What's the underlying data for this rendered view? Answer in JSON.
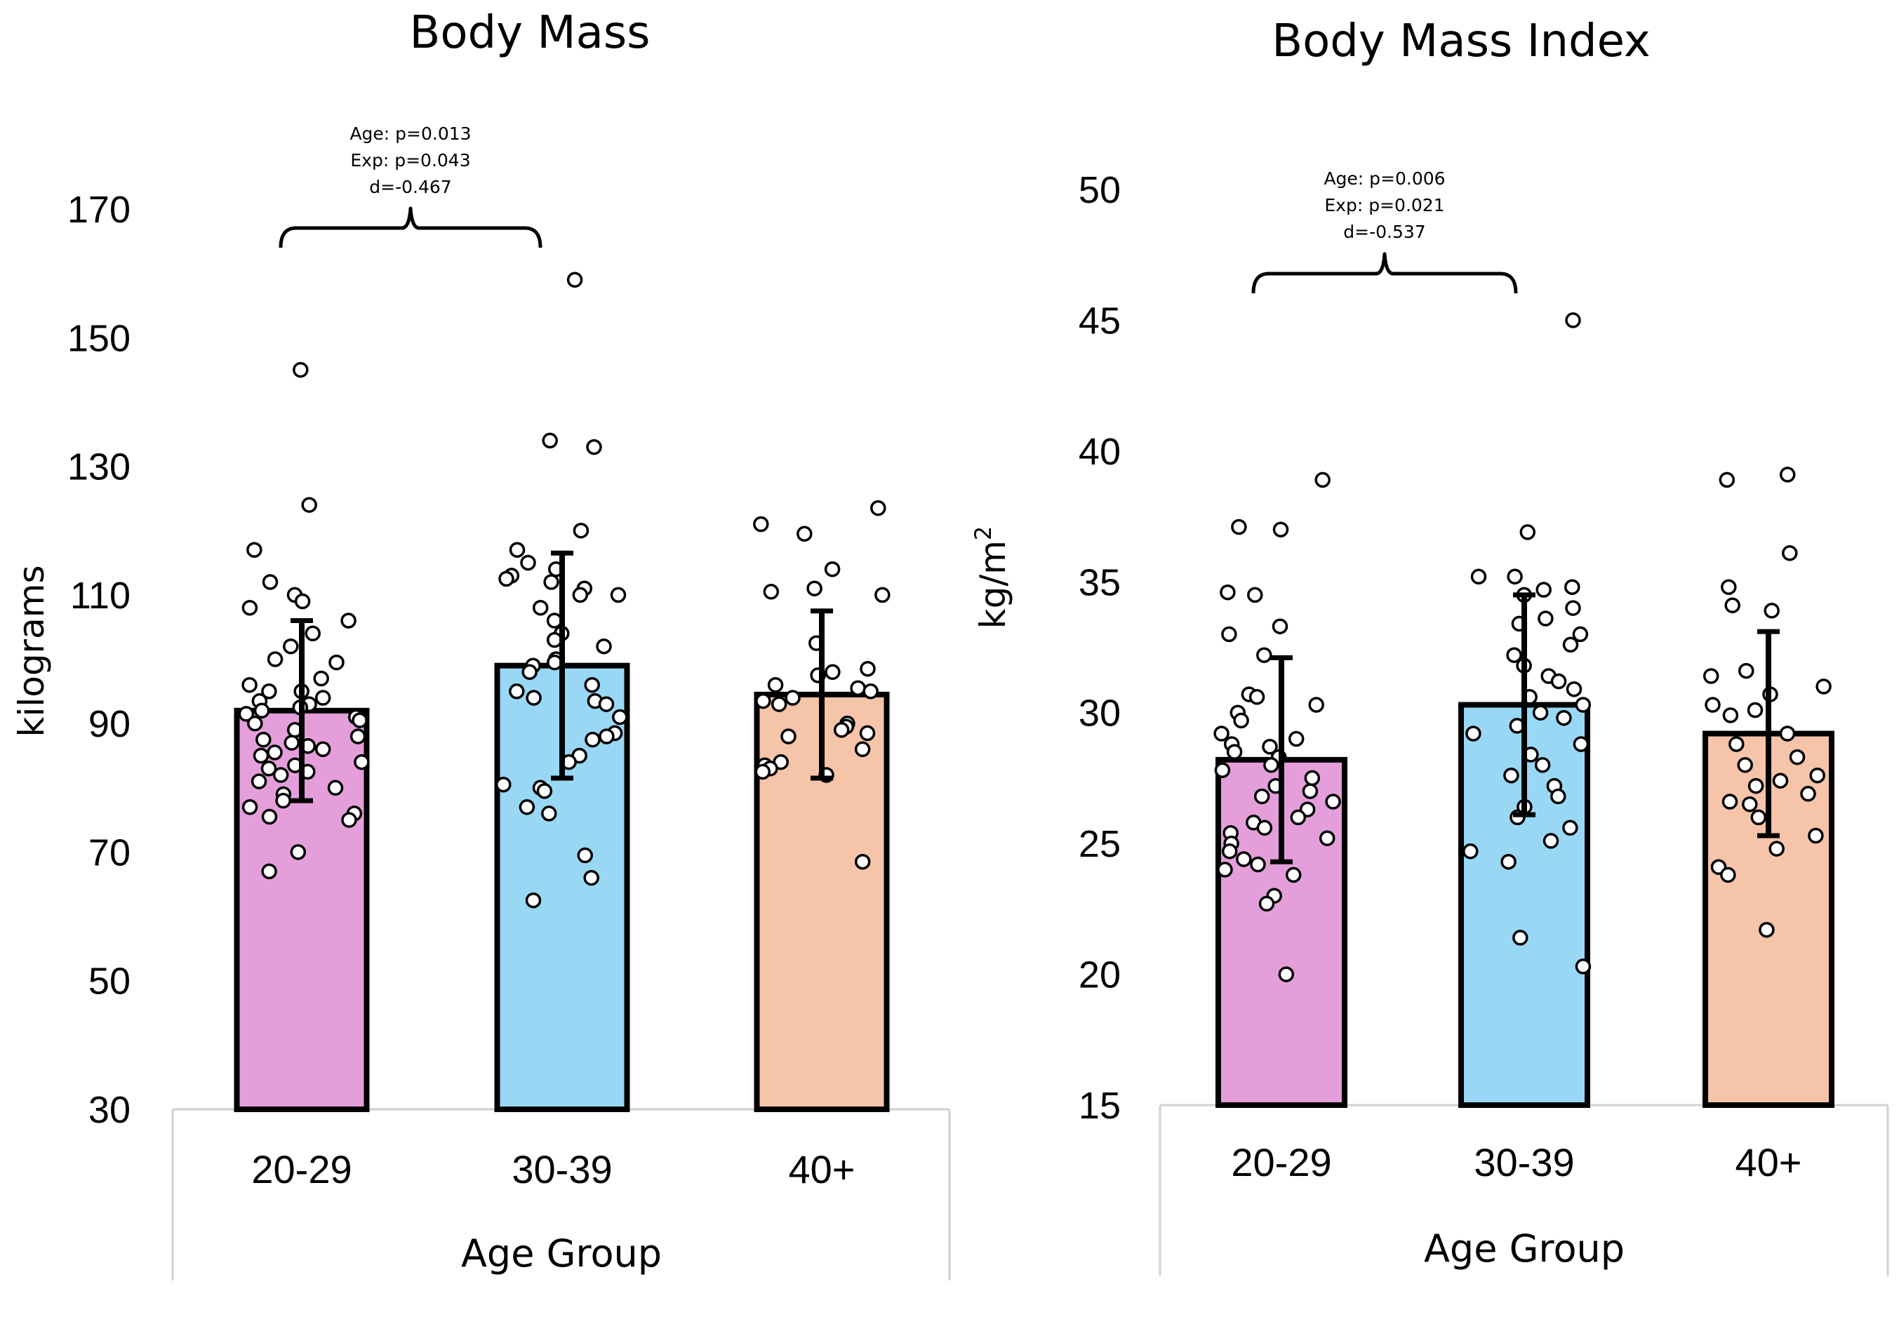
{
  "chart_data": [
    {
      "type": "bar",
      "title": "Body Mass",
      "xlabel": "Age Group",
      "ylabel": "kilograms",
      "ylabel_sup": "",
      "ylim": [
        30,
        170
      ],
      "yticks": [
        30,
        50,
        70,
        90,
        110,
        130,
        150,
        170
      ],
      "ytick_labels": [
        "30",
        "50",
        "70",
        "90",
        "110",
        "130",
        "150",
        "170"
      ],
      "categories": [
        "20-29",
        "30-39",
        "40+"
      ],
      "colors": [
        "#e49fdb",
        "#99d8f5",
        "#f5c4a9"
      ],
      "values": [
        92,
        99,
        94.5
      ],
      "error": [
        14,
        17.5,
        13
      ],
      "points": [
        [
          145,
          124,
          117,
          112,
          110,
          109,
          108,
          106,
          104,
          102,
          100,
          99.5,
          97,
          96,
          95,
          95,
          94,
          93.5,
          93,
          92.5,
          92,
          91.5,
          91,
          90.5,
          90,
          89,
          88,
          87.5,
          87,
          86.5,
          86,
          85.5,
          85,
          84,
          83.5,
          83,
          82.5,
          82,
          81,
          80,
          79,
          78,
          77,
          76,
          75.5,
          75,
          70,
          67
        ],
        [
          159,
          134,
          133,
          120,
          117,
          115,
          114,
          113,
          112.5,
          112,
          111,
          110,
          110,
          108,
          106,
          104,
          103,
          102,
          100,
          99.5,
          99,
          98,
          96,
          95,
          94,
          93.5,
          93,
          91,
          88.5,
          88,
          87.5,
          85,
          84,
          80.5,
          80,
          79.5,
          77,
          76,
          69.5,
          66,
          62.5
        ],
        [
          123.5,
          121,
          119.5,
          114,
          111,
          110.5,
          110,
          102.5,
          98.5,
          98,
          97.5,
          96,
          95.5,
          95,
          94,
          93.5,
          93,
          90,
          89.5,
          89,
          88.5,
          88,
          86,
          84,
          83.5,
          83,
          82.5,
          82,
          68.5
        ]
      ],
      "annotation": {
        "lines": [
          "Age: p=0.013",
          "Exp: p=0.043",
          "d=-0.467"
        ],
        "between": [
          "20-29",
          "30-39"
        ]
      }
    },
    {
      "type": "bar",
      "title": "Body Mass Index",
      "xlabel": "Age Group",
      "ylabel": "kg/m",
      "ylabel_sup": "2",
      "ylim": [
        15,
        50
      ],
      "yticks": [
        15,
        20,
        25,
        30,
        35,
        40,
        45,
        50
      ],
      "ytick_labels": [
        "15",
        "20",
        "25",
        "30",
        "35",
        "40",
        "45",
        "50"
      ],
      "categories": [
        "20-29",
        "30-39",
        "40+"
      ],
      "colors": [
        "#e49fdb",
        "#99d8f5",
        "#f5c4a9"
      ],
      "values": [
        28.2,
        30.3,
        29.2
      ],
      "error": [
        3.9,
        4.2,
        3.9
      ],
      "points": [
        [
          38.9,
          37.1,
          37,
          34.6,
          34.5,
          33.3,
          33,
          32.2,
          30.7,
          30.6,
          30.3,
          30,
          29.7,
          29.2,
          29,
          28.8,
          28.7,
          28.5,
          28.3,
          28,
          27.8,
          27.5,
          27.2,
          27,
          26.8,
          26.6,
          26.3,
          26,
          25.8,
          25.6,
          25.4,
          25.2,
          25,
          24.7,
          24.4,
          24.2,
          24,
          23.8,
          23,
          22.7,
          20
        ],
        [
          45,
          36.9,
          35.2,
          35.2,
          34.8,
          34.7,
          34.5,
          34,
          33.6,
          33.4,
          33,
          32.6,
          32.2,
          31.8,
          31.4,
          31.2,
          30.9,
          30.6,
          30.3,
          30,
          29.8,
          29.5,
          29.2,
          28.8,
          28.4,
          28,
          27.6,
          27.2,
          26.8,
          26.4,
          26,
          25.6,
          25.1,
          24.7,
          24.3,
          21.4,
          20.3
        ],
        [
          39.1,
          38.9,
          36.1,
          34.8,
          34.1,
          33.9,
          31.6,
          31.4,
          31,
          30.7,
          30.3,
          30.1,
          29.9,
          29.2,
          28.8,
          28.3,
          28,
          27.6,
          27.4,
          27.2,
          26.9,
          26.6,
          26.5,
          26,
          25.3,
          24.8,
          24.1,
          23.8,
          21.7
        ]
      ],
      "annotation": {
        "lines": [
          "Age: p=0.006",
          "Exp: p=0.021",
          "d=-0.537"
        ],
        "between": [
          "20-29",
          "30-39"
        ]
      }
    }
  ]
}
